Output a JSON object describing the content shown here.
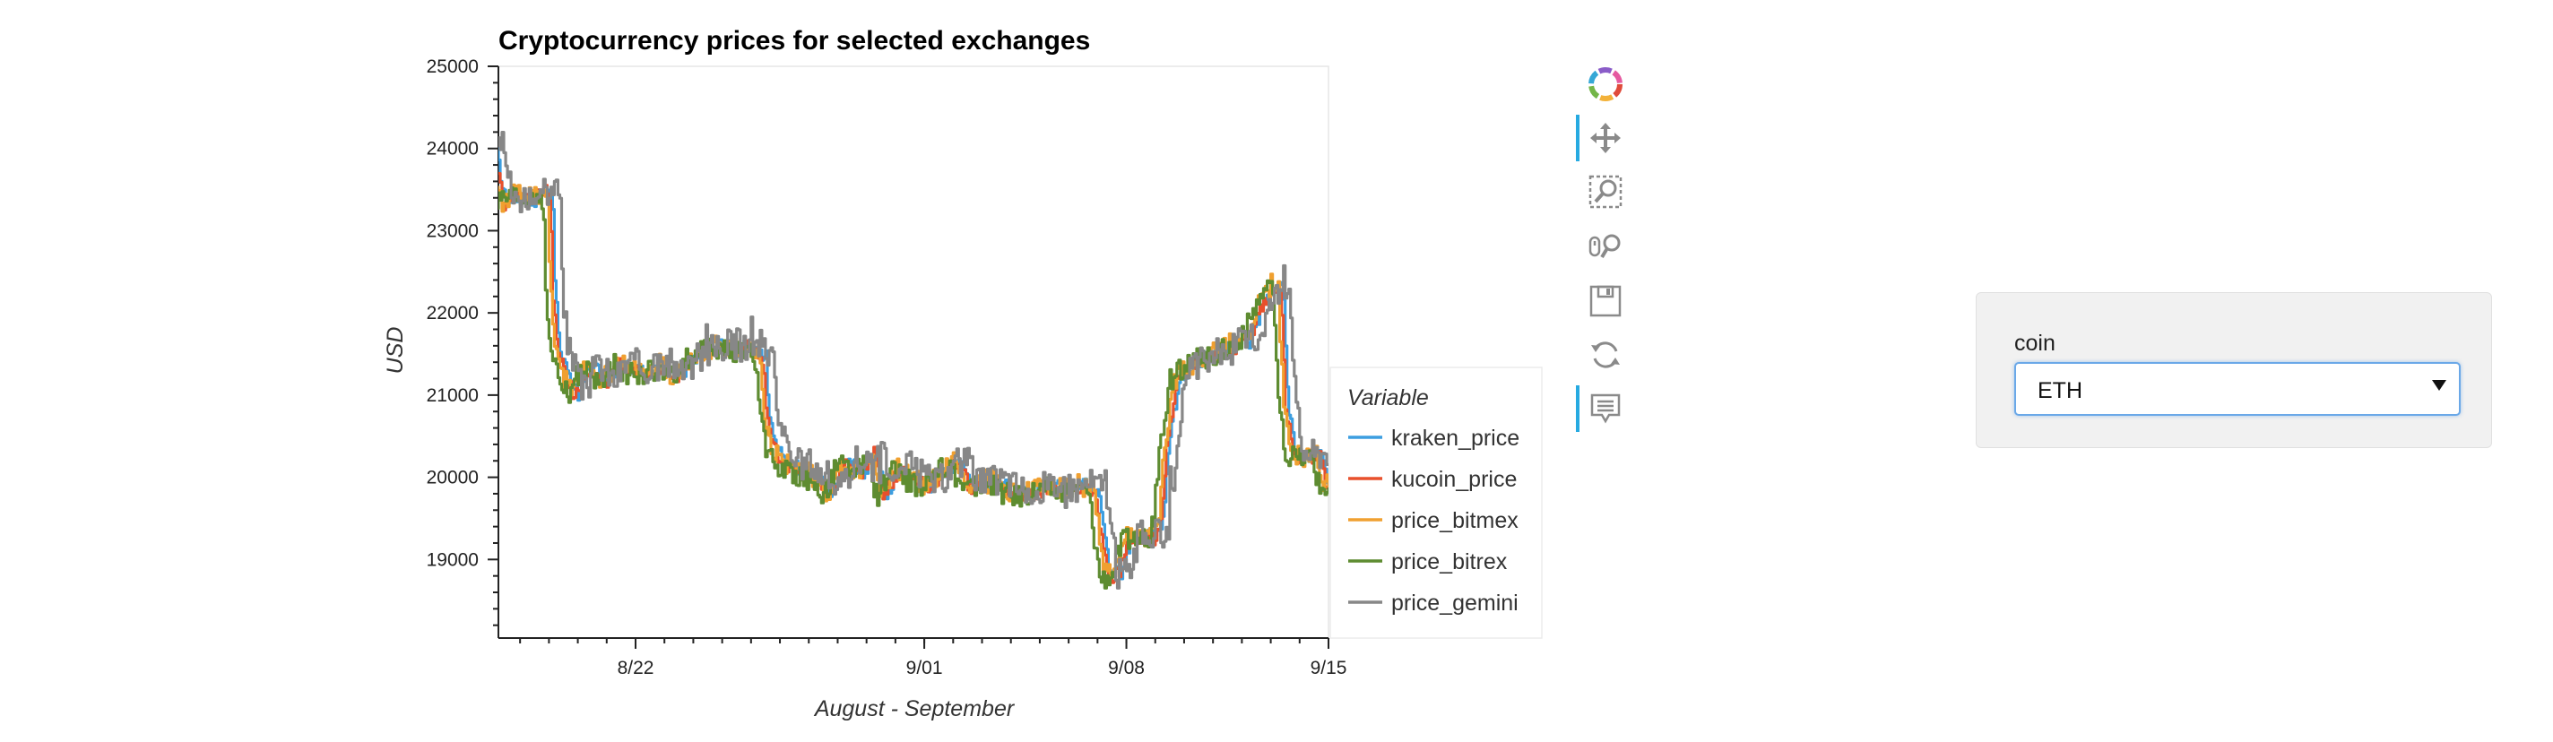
{
  "chart_data": {
    "type": "line",
    "title": "Cryptocurrency prices for selected exchanges",
    "xlabel": "August - September",
    "ylabel": "USD",
    "x_domain": [
      "2022-08-17",
      "2022-09-15"
    ],
    "ylim": [
      18100,
      25000
    ],
    "x_ticks": [
      {
        "date": "2022-08-22",
        "label": "8/22"
      },
      {
        "date": "2022-09-01",
        "label": "9/01"
      },
      {
        "date": "2022-09-08",
        "label": "9/08"
      },
      {
        "date": "2022-09-15",
        "label": "9/15"
      }
    ],
    "y_ticks": [
      19000,
      20000,
      21000,
      22000,
      23000,
      24000,
      25000
    ],
    "y_tick_labels": [
      "19000",
      "20000",
      "21000",
      "22000",
      "23000",
      "24000",
      "25000"
    ],
    "legend_title": "Variable",
    "legend_position": "right",
    "grid": false,
    "base_points": [
      [
        "2022-08-17T00:00",
        23900
      ],
      [
        "2022-08-17T03:00",
        24350
      ],
      [
        "2022-08-17T07:00",
        23700
      ],
      [
        "2022-08-17T12:00",
        23350
      ],
      [
        "2022-08-18T00:00",
        23420
      ],
      [
        "2022-08-18T12:00",
        23380
      ],
      [
        "2022-08-19T00:00",
        23500
      ],
      [
        "2022-08-19T03:00",
        23300
      ],
      [
        "2022-08-19T05:00",
        22200
      ],
      [
        "2022-08-19T09:00",
        21600
      ],
      [
        "2022-08-19T16:00",
        21200
      ],
      [
        "2022-08-20T00:00",
        21000
      ],
      [
        "2022-08-20T06:00",
        21250
      ],
      [
        "2022-08-20T12:00",
        21350
      ],
      [
        "2022-08-21T00:00",
        21150
      ],
      [
        "2022-08-21T12:00",
        21400
      ],
      [
        "2022-08-22T00:00",
        21300
      ],
      [
        "2022-08-22T12:00",
        21250
      ],
      [
        "2022-08-23T00:00",
        21350
      ],
      [
        "2022-08-23T12:00",
        21200
      ],
      [
        "2022-08-24T00:00",
        21450
      ],
      [
        "2022-08-24T12:00",
        21550
      ],
      [
        "2022-08-25T00:00",
        21600
      ],
      [
        "2022-08-25T12:00",
        21550
      ],
      [
        "2022-08-26T00:00",
        21600
      ],
      [
        "2022-08-26T12:00",
        21450
      ],
      [
        "2022-08-26T15:00",
        20700
      ],
      [
        "2022-08-26T20:00",
        20400
      ],
      [
        "2022-08-27T06:00",
        20150
      ],
      [
        "2022-08-27T18:00",
        20100
      ],
      [
        "2022-08-28T08:00",
        20000
      ],
      [
        "2022-08-28T20:00",
        19800
      ],
      [
        "2022-08-29T08:00",
        20200
      ],
      [
        "2022-08-29T20:00",
        20050
      ],
      [
        "2022-08-30T08:00",
        20300
      ],
      [
        "2022-08-30T16:00",
        19800
      ],
      [
        "2022-08-31T04:00",
        20100
      ],
      [
        "2022-08-31T16:00",
        20000
      ],
      [
        "2022-09-01T04:00",
        19900
      ],
      [
        "2022-09-01T16:00",
        20050
      ],
      [
        "2022-09-02T04:00",
        20200
      ],
      [
        "2022-09-02T16:00",
        19900
      ],
      [
        "2022-09-03T12:00",
        19950
      ],
      [
        "2022-09-04T00:00",
        19850
      ],
      [
        "2022-09-04T12:00",
        19800
      ],
      [
        "2022-09-05T00:00",
        19850
      ],
      [
        "2022-09-05T12:00",
        19900
      ],
      [
        "2022-09-06T00:00",
        19850
      ],
      [
        "2022-09-06T12:00",
        19900
      ],
      [
        "2022-09-07T00:00",
        19850
      ],
      [
        "2022-09-07T05:00",
        19300
      ],
      [
        "2022-09-07T10:00",
        18800
      ],
      [
        "2022-09-07T20:00",
        18850
      ],
      [
        "2022-09-08T04:00",
        19250
      ],
      [
        "2022-09-08T12:00",
        19300
      ],
      [
        "2022-09-09T00:00",
        19250
      ],
      [
        "2022-09-09T06:00",
        19450
      ],
      [
        "2022-09-09T12:00",
        20500
      ],
      [
        "2022-09-09T20:00",
        21200
      ],
      [
        "2022-09-10T06:00",
        21350
      ],
      [
        "2022-09-10T18:00",
        21450
      ],
      [
        "2022-09-11T06:00",
        21500
      ],
      [
        "2022-09-11T18:00",
        21600
      ],
      [
        "2022-09-12T06:00",
        21650
      ],
      [
        "2022-09-12T18:00",
        22100
      ],
      [
        "2022-09-13T04:00",
        22350
      ],
      [
        "2022-09-13T10:00",
        22250
      ],
      [
        "2022-09-13T14:00",
        20900
      ],
      [
        "2022-09-13T20:00",
        20300
      ],
      [
        "2022-09-14T06:00",
        20250
      ],
      [
        "2022-09-14T18:00",
        20300
      ],
      [
        "2022-09-15T00:00",
        19900
      ]
    ],
    "series": [
      {
        "name": "kraken_price",
        "color": "#3c9ee0",
        "offset_hours": 0,
        "value_shift": 0,
        "jitter": 0
      },
      {
        "name": "kucoin_price",
        "color": "#e8502c",
        "offset_hours": -2,
        "value_shift": -20,
        "jitter": 0
      },
      {
        "name": "price_bitmex",
        "color": "#f0a030",
        "offset_hours": -4,
        "value_shift": 10,
        "jitter": 1
      },
      {
        "name": "price_bitrex",
        "color": "#5e8c31",
        "offset_hours": -8,
        "value_shift": -30,
        "jitter": 1
      },
      {
        "name": "price_gemini",
        "color": "#878787",
        "offset_hours": 6,
        "value_shift": 40,
        "jitter": 2
      }
    ]
  },
  "toolbar": {
    "tools": [
      {
        "icon": "bokeh-logo-icon",
        "active": false
      },
      {
        "icon": "pan-icon",
        "active": true
      },
      {
        "icon": "box-zoom-icon",
        "active": false
      },
      {
        "icon": "wheel-zoom-icon",
        "active": false
      },
      {
        "icon": "save-icon",
        "active": false
      },
      {
        "icon": "reset-icon",
        "active": false
      },
      {
        "icon": "hover-icon",
        "active": true
      }
    ]
  },
  "widget": {
    "label": "coin",
    "selected": "ETH"
  }
}
